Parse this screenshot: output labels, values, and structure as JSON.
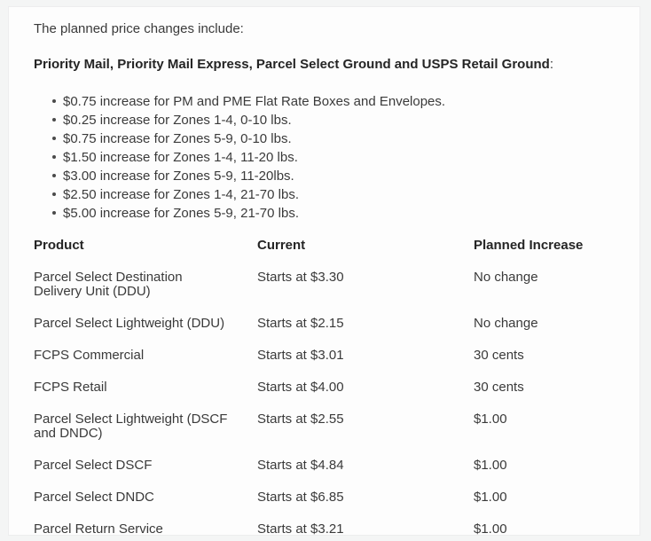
{
  "content": {
    "intro": "The planned price changes include:",
    "heading": {
      "bold": "Priority Mail, Priority Mail Express, Parcel Select Ground and USPS Retail Ground",
      "suffix": ":"
    },
    "bullets": [
      "$0.75 increase for PM and PME Flat Rate Boxes and Envelopes.",
      "$0.25 increase for Zones 1-4, 0-10 lbs.",
      "$0.75 increase for Zones 5-9, 0-10 lbs.",
      "$1.50 increase for Zones 1-4, 11-20 lbs.",
      "$3.00 increase for Zones 5-9, 11-20lbs.",
      "$2.50 increase for Zones 1-4, 21-70 lbs.",
      "$5.00 increase for Zones 5-9, 21-70 lbs."
    ],
    "table": {
      "columns": [
        "Product",
        "Current",
        "Planned Increase"
      ],
      "rows": [
        {
          "product": "Parcel Select Destination Delivery Unit (DDU)",
          "current": "Starts at $3.30",
          "planned": "No change"
        },
        {
          "product": "Parcel Select Lightweight (DDU)",
          "current": "Starts at $2.15",
          "planned": "No change"
        },
        {
          "product": "FCPS Commercial",
          "current": "Starts at $3.01",
          "planned": "30 cents"
        },
        {
          "product": "FCPS Retail",
          "current": "Starts at $4.00",
          "planned": "30 cents"
        },
        {
          "product": "Parcel Select Lightweight (DSCF and DNDC)",
          "current": "Starts at $2.55",
          "planned": "$1.00"
        },
        {
          "product": "Parcel Select DSCF",
          "current": "Starts at $4.84",
          "planned": "$1.00"
        },
        {
          "product": "Parcel Select DNDC",
          "current": "Starts at $6.85",
          "planned": "$1.00"
        },
        {
          "product": "Parcel Return Service",
          "current": "Starts at $3.21",
          "planned": "$1.00"
        }
      ]
    }
  }
}
